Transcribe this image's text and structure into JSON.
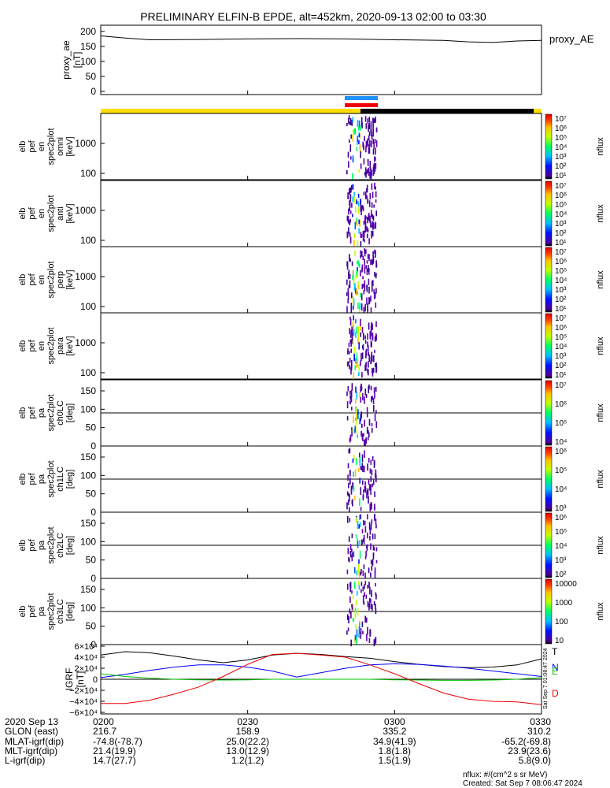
{
  "title": "PRELIMINARY ELFIN-B EPDE, alt=452km, 2020-09-13 02:00 to 03:30",
  "colors": {
    "bar_yellow": "#ffdd00",
    "bar_black": "#000000",
    "bar_blue": "#1e90ff",
    "bar_red": "#ee0000",
    "grf_T": "#000000",
    "grf_N": "#0000ff",
    "grf_E": "#00c000",
    "grf_D": "#ee0000"
  },
  "chart_data": [
    {
      "type": "line",
      "id": "proxy_ae",
      "ylabel": [
        "proxy_ae",
        "[nT]"
      ],
      "legend": "proxy_AE",
      "yticks": [
        "200",
        "150",
        "100",
        "50",
        "0"
      ],
      "ylim": [
        0,
        210
      ],
      "x_minutes": [
        0,
        5,
        10,
        20,
        30,
        40,
        50,
        60,
        70,
        75,
        80,
        85,
        90
      ],
      "values": [
        185,
        178,
        172,
        173,
        175,
        176,
        175,
        172,
        170,
        165,
        163,
        168,
        170
      ]
    },
    {
      "type": "heatmap",
      "id": "en_omni",
      "ylabel": [
        "elb",
        "pef",
        "en",
        "spec2plot",
        "omni",
        "[keV]"
      ],
      "yticks": [
        "1000",
        "100"
      ],
      "ylog": true,
      "colorbar": {
        "label": "nflux",
        "ticks": [
          "10⁷",
          "10⁶",
          "10⁵",
          "10⁴",
          "10³",
          "10²",
          "10¹"
        ]
      }
    },
    {
      "type": "heatmap",
      "id": "en_anti",
      "ylabel": [
        "elb",
        "pef",
        "en",
        "spec2plot",
        "anti",
        "[keV]"
      ],
      "yticks": [
        "1000",
        "100"
      ],
      "ylog": true,
      "colorbar": {
        "label": "nflux",
        "ticks": [
          "10⁷",
          "10⁶",
          "10⁵",
          "10⁴",
          "10³",
          "10²",
          "10¹"
        ]
      }
    },
    {
      "type": "heatmap",
      "id": "en_perp",
      "ylabel": [
        "elb",
        "pef",
        "en",
        "spec2plot",
        "perp",
        "[keV]"
      ],
      "yticks": [
        "1000",
        "100"
      ],
      "ylog": true,
      "colorbar": {
        "label": "nflux",
        "ticks": [
          "10⁷",
          "10⁶",
          "10⁵",
          "10⁴",
          "10³",
          "10²",
          "10¹"
        ]
      }
    },
    {
      "type": "heatmap",
      "id": "en_para",
      "ylabel": [
        "elb",
        "pef",
        "en",
        "spec2plot",
        "para",
        "[keV]"
      ],
      "yticks": [
        "1000",
        "100"
      ],
      "ylog": true,
      "colorbar": {
        "label": "nflux",
        "ticks": [
          "10⁷",
          "10⁶",
          "10⁵",
          "10⁴",
          "10³",
          "10²",
          "10¹"
        ]
      }
    },
    {
      "type": "heatmap",
      "id": "pa_ch0",
      "ylabel": [
        "elb",
        "pef",
        "pa",
        "spec2plot",
        "ch0LC",
        "[deg]"
      ],
      "yticks": [
        "150",
        "100",
        "50",
        "0"
      ],
      "ylim": [
        0,
        180
      ],
      "colorbar": {
        "label": "nflux",
        "ticks": [
          "10⁷",
          "10⁶",
          "10⁵",
          "10⁴"
        ]
      }
    },
    {
      "type": "heatmap",
      "id": "pa_ch1",
      "ylabel": [
        "elb",
        "pef",
        "pa",
        "spec2plot",
        "ch1LC",
        "[deg]"
      ],
      "yticks": [
        "150",
        "100",
        "50",
        "0"
      ],
      "ylim": [
        0,
        180
      ],
      "colorbar": {
        "label": "nflux",
        "ticks": [
          "10⁶",
          "10⁵",
          "10⁴",
          "10³"
        ]
      }
    },
    {
      "type": "heatmap",
      "id": "pa_ch2",
      "ylabel": [
        "elb",
        "pef",
        "pa",
        "spec2plot",
        "ch2LC",
        "[deg]"
      ],
      "yticks": [
        "150",
        "100",
        "50",
        "0"
      ],
      "ylim": [
        0,
        180
      ],
      "colorbar": {
        "label": "nflux",
        "ticks": [
          "10⁶",
          "10⁵",
          "10⁴",
          "10³",
          "10²"
        ]
      }
    },
    {
      "type": "heatmap",
      "id": "pa_ch3",
      "ylabel": [
        "elb",
        "pef",
        "pa",
        "spec2plot",
        "ch3LC",
        "[deg]"
      ],
      "yticks": [
        "150",
        "100",
        "50",
        "0"
      ],
      "ylim": [
        0,
        180
      ],
      "colorbar": {
        "label": "nflux",
        "ticks": [
          "10000",
          "1000",
          "100",
          "10"
        ]
      }
    },
    {
      "type": "line",
      "id": "igrf",
      "ylabel": [
        "IGRF",
        "[nT]"
      ],
      "yticks": [
        "6×10⁴",
        "4×10⁴",
        "2×10⁴",
        "0",
        "−2×10⁴",
        "−4×10⁴",
        "−6×10⁴"
      ],
      "ylim": [
        -60000,
        60000
      ],
      "legend": [
        "T",
        "N",
        "E",
        "D"
      ],
      "x_minutes": [
        0,
        5,
        10,
        15,
        20,
        25,
        30,
        35,
        40,
        45,
        50,
        55,
        60,
        65,
        70,
        75,
        80,
        85,
        90
      ],
      "series": [
        {
          "name": "T",
          "values": [
            44000,
            50000,
            48000,
            42000,
            35000,
            30000,
            35000,
            44000,
            47000,
            45000,
            41000,
            38000,
            32000,
            27000,
            23000,
            21000,
            22000,
            26000,
            37000
          ]
        },
        {
          "name": "N",
          "values": [
            3000,
            9000,
            16000,
            22000,
            26000,
            26000,
            22000,
            15000,
            4000,
            12000,
            20000,
            26000,
            28000,
            27000,
            24000,
            20000,
            15000,
            10000,
            5000
          ]
        },
        {
          "name": "E",
          "values": [
            10000,
            5000,
            2000,
            0,
            -1000,
            -1500,
            -1000,
            0,
            0,
            0,
            0,
            0,
            -1000,
            -1500,
            -2000,
            -2000,
            -1500,
            0,
            3000
          ]
        },
        {
          "name": "D",
          "values": [
            -44000,
            -44000,
            -38000,
            -27000,
            -14000,
            5000,
            27000,
            45000,
            47000,
            44000,
            40000,
            26000,
            10000,
            -8000,
            -25000,
            -36000,
            -40000,
            -41000,
            -46000
          ]
        }
      ]
    }
  ],
  "xaxis": {
    "row_labels": [
      "2020 Sep 13",
      "GLON (east)",
      "MLAT-igrf(dip)",
      "MLT-igrf(dip)",
      "L-igrf(dip)"
    ],
    "ticks": [
      {
        "minute": 0,
        "values": [
          "0200",
          "216.7",
          "-74.8(-78.7)",
          "21.4(19.9)",
          "14.7(27.7)"
        ]
      },
      {
        "minute": 30,
        "values": [
          "0230",
          "158.9",
          "25.0(22.2)",
          "13.0(12.9)",
          "1.2(1.2)"
        ]
      },
      {
        "minute": 60,
        "values": [
          "0300",
          "335.2",
          "34.9(41.9)",
          "1.8(1.8)",
          "1.5(1.9)"
        ]
      },
      {
        "minute": 90,
        "values": [
          "0330",
          "310.2",
          "-65.2(-69.8)",
          "23.9(23.6)",
          "5.8(9.0)"
        ]
      }
    ]
  },
  "footer": {
    "units": "nflux: #/(cm^2 s sr MeV)",
    "created": "Created: Sat Sep  7 08:06:47 2024",
    "side_stamp": "Sat Sep  7 01:08:47 2024"
  }
}
